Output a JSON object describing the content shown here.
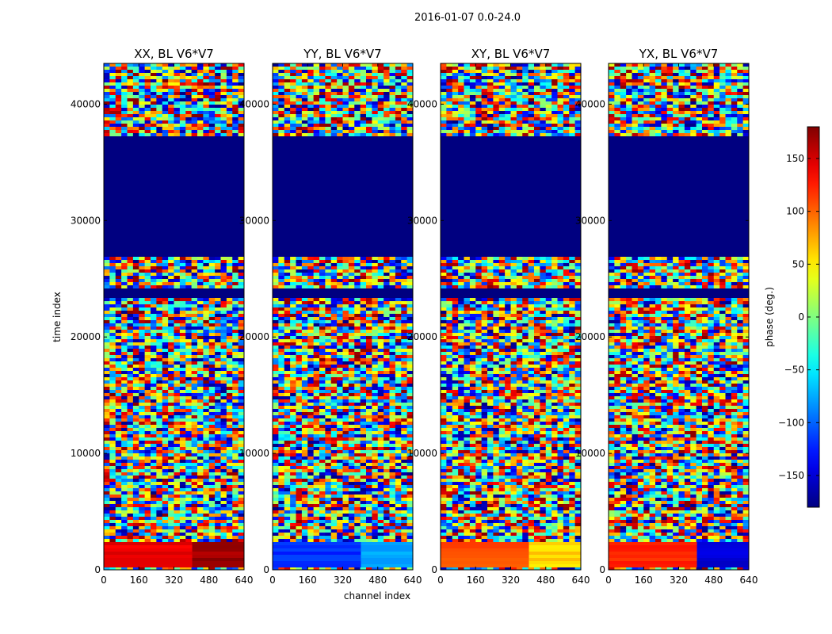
{
  "chart_data": {
    "type": "heatmap",
    "suptitle": "2016-01-07 0.0-24.0",
    "xlabel": "channel index",
    "ylabel": "time index",
    "x_ticks": [
      0,
      160,
      320,
      480,
      640
    ],
    "y_ticks": [
      0,
      10000,
      20000,
      30000,
      40000
    ],
    "xlim": [
      0,
      640
    ],
    "ylim": [
      0,
      43500
    ],
    "panels": [
      {
        "title": "XX, BL V6*V7",
        "low_band_value": 140,
        "low_band_right_value": 170
      },
      {
        "title": "YY, BL V6*V7",
        "low_band_value": -120,
        "low_band_right_value": -80
      },
      {
        "title": "XY, BL V6*V7",
        "low_band_value": 110,
        "low_band_right_value": 60
      },
      {
        "title": "YX, BL V6*V7",
        "low_band_value": 120,
        "low_band_right_value": -150
      }
    ],
    "flagged_block": {
      "time_start": 27000,
      "time_end": 37300,
      "value": -180
    },
    "flagged_block_2": {
      "time_start": 23400,
      "time_end": 24300,
      "value": -180
    },
    "colorbar": {
      "label": "phase (deg.)",
      "range": [
        -180,
        180
      ],
      "ticks": [
        -150,
        -100,
        -50,
        0,
        50,
        100,
        150
      ],
      "colormap": "jet"
    }
  }
}
